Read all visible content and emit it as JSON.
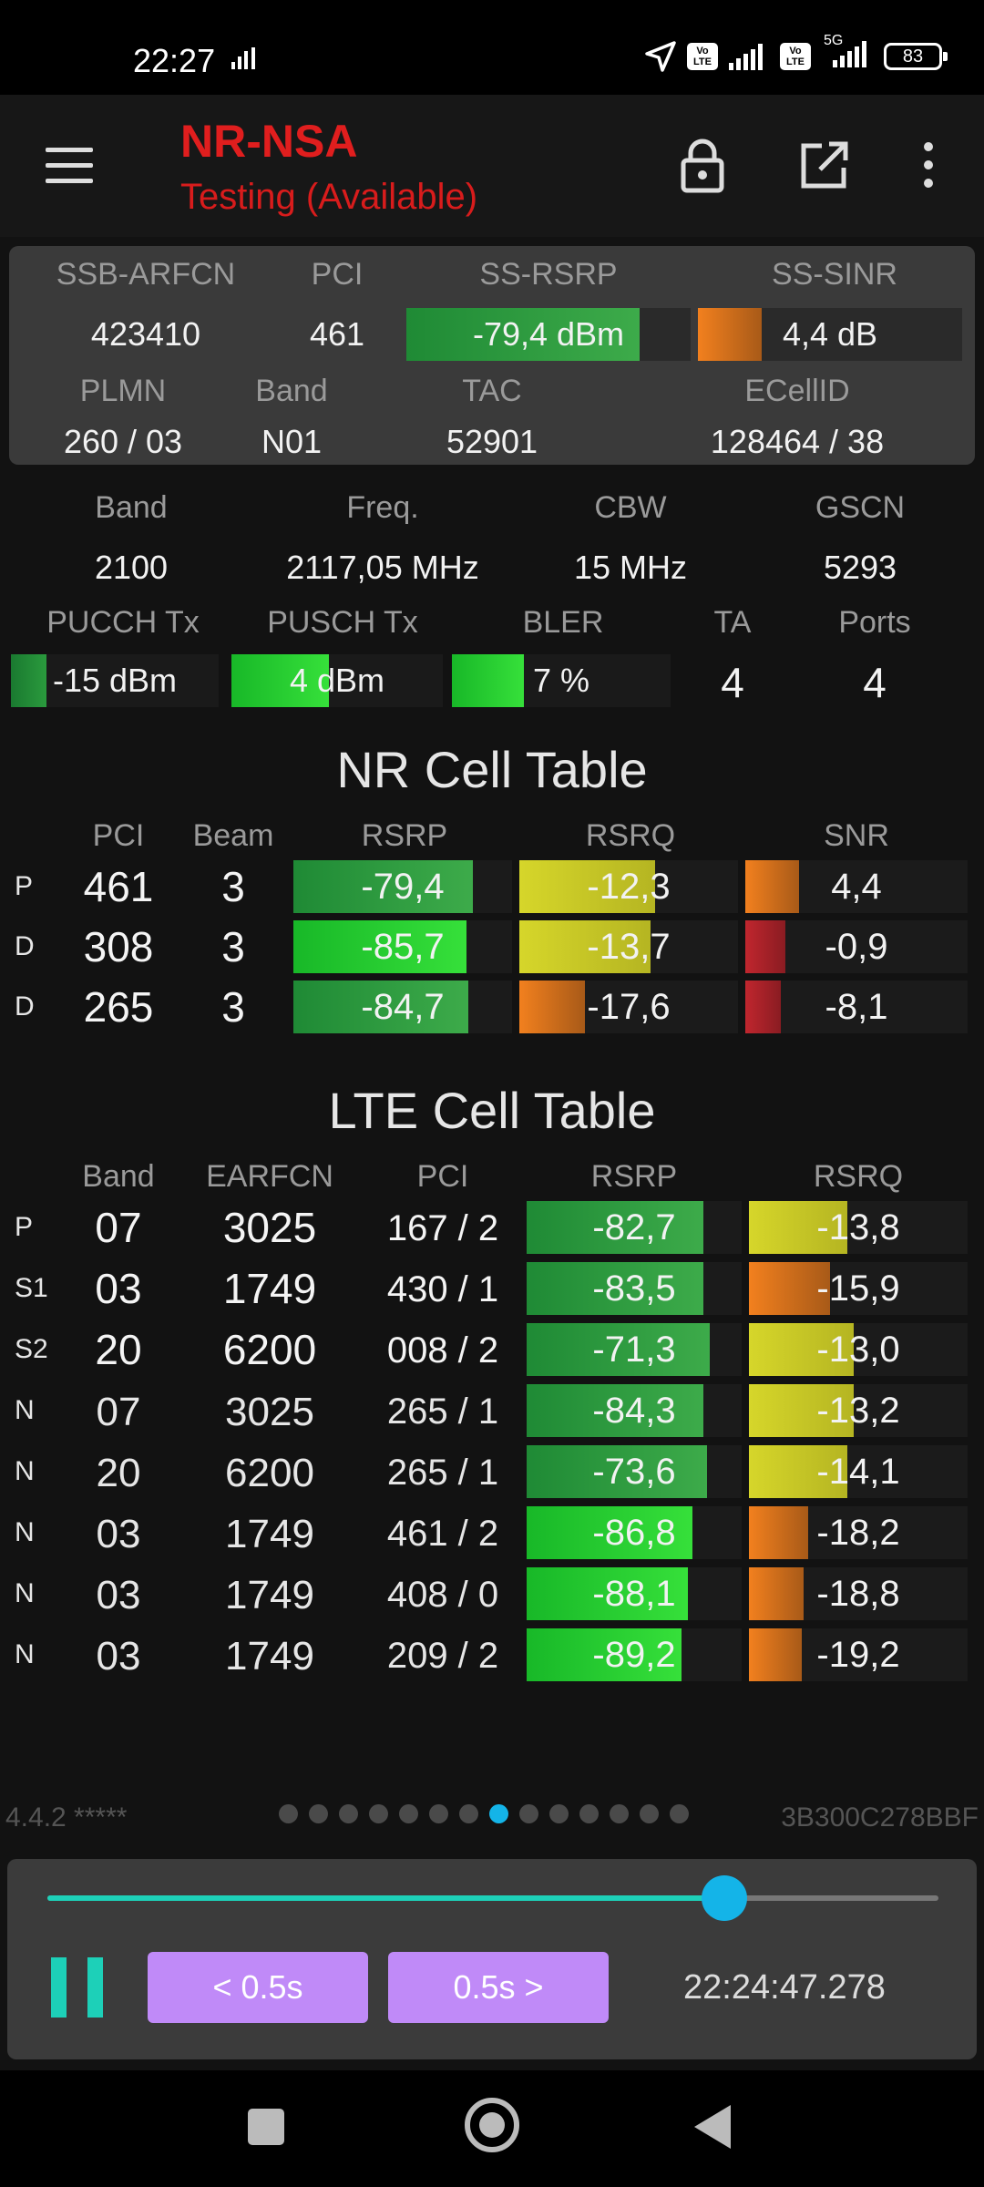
{
  "status_bar": {
    "time": "22:27",
    "battery": "83",
    "network": "5G",
    "volte1": "Vo LTE",
    "volte2": "Vo LTE"
  },
  "app_bar": {
    "title": "NR-NSA",
    "subtitle": "Testing (Available)"
  },
  "serving": {
    "labels": [
      "SSB-ARFCN",
      "PCI",
      "SS-RSRP",
      "SS-SINR",
      "PLMN",
      "Band",
      "TAC",
      "ECellID"
    ],
    "ssb_arfcn": "423410",
    "pci": "461",
    "ss_rsrp": {
      "text": "-79,4 dBm",
      "level": 0.82
    },
    "ss_sinr": {
      "text": "4,4 dB",
      "level": 0.24
    },
    "plmn": "260 / 03",
    "band": "N01",
    "tac": "52901",
    "ecellid": "128464 / 38"
  },
  "info": {
    "labels": [
      "Band",
      "Freq.",
      "CBW",
      "GSCN",
      "PUCCH Tx",
      "PUSCH Tx",
      "BLER",
      "TA",
      "Ports"
    ],
    "band": "2100",
    "freq": "2117,05 MHz",
    "cbw": "15 MHz",
    "gscn": "5293",
    "pucch_tx": {
      "text": "-15 dBm",
      "level": 0.17
    },
    "pusch_tx": {
      "text": "4 dBm",
      "level": 0.46
    },
    "bler": {
      "text": "7 %",
      "level": 0.33
    },
    "ta": "4",
    "ports": "4"
  },
  "nr_table": {
    "title": "NR Cell Table",
    "headers": [
      "PCI",
      "Beam",
      "RSRP",
      "RSRQ",
      "SNR"
    ],
    "rows": [
      {
        "tag": "P",
        "pci": "461",
        "beam": "3",
        "rsrp": "-79,4",
        "rsrp_level": 0.82,
        "rsrq": "-12,3",
        "rsrq_level": 0.62,
        "snr": "4,4",
        "snr_level": 0.24
      },
      {
        "tag": "D",
        "pci": "308",
        "beam": "3",
        "rsrp": "-85,7",
        "rsrp_level": 0.79,
        "rsrq": "-13,7",
        "rsrq_level": 0.6,
        "snr": "-0,9",
        "snr_level": 0.18
      },
      {
        "tag": "D",
        "pci": "265",
        "beam": "3",
        "rsrp": "-84,7",
        "rsrp_level": 0.8,
        "rsrq": "-17,6",
        "rsrq_level": 0.3,
        "snr": "-8,1",
        "snr_level": 0.16
      }
    ]
  },
  "lte_table": {
    "title": "LTE Cell Table",
    "headers": [
      "Band",
      "EARFCN",
      "PCI",
      "RSRP",
      "RSRQ"
    ],
    "rows": [
      {
        "tag": "P",
        "band": "07",
        "earfcn": "3025",
        "pci": "167 / 2",
        "rsrp": "-82,7",
        "rsrp_level": 0.82,
        "rsrq": "-13,8",
        "rsrq_level": 0.45
      },
      {
        "tag": "S1",
        "band": "03",
        "earfcn": "1749",
        "pci": "430 / 1",
        "rsrp": "-83,5",
        "rsrp_level": 0.82,
        "rsrq": "-15,9",
        "rsrq_level": 0.37
      },
      {
        "tag": "S2",
        "band": "20",
        "earfcn": "6200",
        "pci": "008 / 2",
        "rsrp": "-71,3",
        "rsrp_level": 0.85,
        "rsrq": "-13,0",
        "rsrq_level": 0.48
      },
      {
        "tag": "N",
        "band": "07",
        "earfcn": "3025",
        "pci": "265 / 1",
        "rsrp": "-84,3",
        "rsrp_level": 0.82,
        "rsrq": "-13,2",
        "rsrq_level": 0.48
      },
      {
        "tag": "N",
        "band": "20",
        "earfcn": "6200",
        "pci": "265 / 1",
        "rsrp": "-73,6",
        "rsrp_level": 0.84,
        "rsrq": "-14,1",
        "rsrq_level": 0.45
      },
      {
        "tag": "N",
        "band": "03",
        "earfcn": "1749",
        "pci": "461 / 2",
        "rsrp": "-86,8",
        "rsrp_level": 0.77,
        "rsrq": "-18,2",
        "rsrq_level": 0.27
      },
      {
        "tag": "N",
        "band": "03",
        "earfcn": "1749",
        "pci": "408 / 0",
        "rsrp": "-88,1",
        "rsrp_level": 0.75,
        "rsrq": "-18,8",
        "rsrq_level": 0.25
      },
      {
        "tag": "N",
        "band": "03",
        "earfcn": "1749",
        "pci": "209 / 2",
        "rsrp": "-89,2",
        "rsrp_level": 0.72,
        "rsrq": "-19,2",
        "rsrq_level": 0.24
      }
    ]
  },
  "footer": {
    "version": "4.4.2 *****",
    "device_id": "3B300C278BBF",
    "page_count": 14,
    "active_page": 8
  },
  "player": {
    "progress": 0.76,
    "back_label": "< 0.5s",
    "forward_label": "0.5s >",
    "time": "22:24:47.278"
  }
}
